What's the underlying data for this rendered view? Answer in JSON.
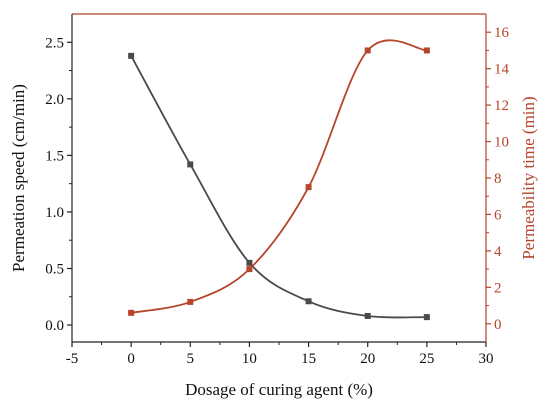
{
  "chart_data": {
    "type": "line",
    "xlabel": "Dosage of curing agent (%)",
    "xlim": [
      -5,
      30
    ],
    "xticks": [
      -5,
      0,
      5,
      10,
      15,
      20,
      25,
      30
    ],
    "ylabel_left": "Permeation speed (cm/min)",
    "ylim_left": [
      -0.15,
      2.75
    ],
    "yticks_left": [
      0.0,
      0.5,
      1.0,
      1.5,
      2.0,
      2.5
    ],
    "ylabel_right": "Permeability time (min)",
    "ylim_right": [
      -1,
      17
    ],
    "yticks_right": [
      0,
      2,
      4,
      6,
      8,
      10,
      12,
      14,
      16
    ],
    "grid": false,
    "series": [
      {
        "axis": "left",
        "color": "#4a4a4a",
        "x": [
          0,
          5,
          10,
          15,
          20,
          25
        ],
        "y": [
          2.38,
          1.42,
          0.55,
          0.21,
          0.08,
          0.07
        ]
      },
      {
        "axis": "right",
        "color": "#b5452b",
        "x": [
          0,
          5,
          10,
          15,
          20,
          25
        ],
        "y": [
          0.6,
          1.2,
          3.0,
          7.5,
          15.0,
          15.0
        ]
      }
    ]
  }
}
